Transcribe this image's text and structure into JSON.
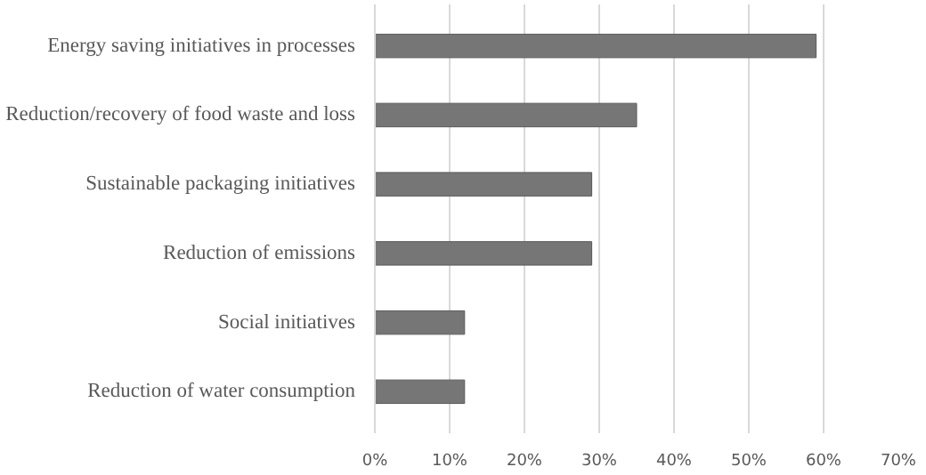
{
  "chart_data": {
    "type": "bar",
    "orientation": "horizontal",
    "categories": [
      "Energy saving initiatives in processes",
      "Reduction/recovery of food waste and loss",
      "Sustainable packaging initiatives",
      "Reduction of emissions",
      "Social initiatives",
      "Reduction of water consumption"
    ],
    "values": [
      59,
      35,
      29,
      29,
      12,
      12
    ],
    "color": "#767676",
    "xlim": [
      0,
      70
    ],
    "xticks": [
      {
        "value": 0,
        "label": "0%"
      },
      {
        "value": 10,
        "label": "10%"
      },
      {
        "value": 20,
        "label": "20%"
      },
      {
        "value": 30,
        "label": "30%"
      },
      {
        "value": 40,
        "label": "40%"
      },
      {
        "value": 50,
        "label": "50%"
      },
      {
        "value": 60,
        "label": "60%"
      },
      {
        "value": 70,
        "label": "70%"
      }
    ],
    "grid": "x"
  }
}
